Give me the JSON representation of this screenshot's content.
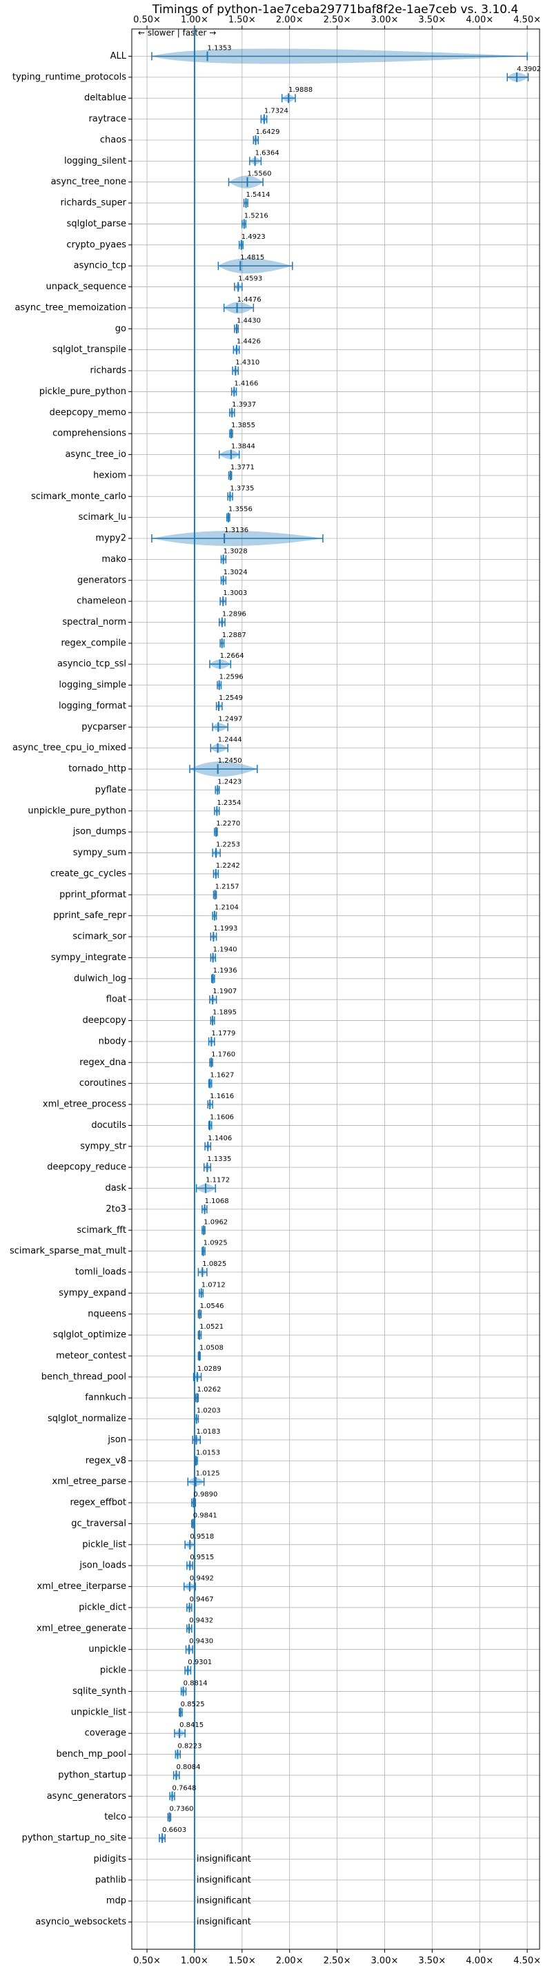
{
  "chart_data": {
    "type": "violin",
    "title": "Timings of python-1ae7ceba29771baf8f2e-1ae7ceb vs. 3.10.4",
    "annotation": "← slower | faster →",
    "color": "#1f77b4",
    "grid": true,
    "reference_line": 1,
    "xlim": [
      0.34,
      4.63
    ],
    "xticks": [
      {
        "value": 0.5,
        "label": "0.50×"
      },
      {
        "value": 1,
        "label": "1.00×"
      },
      {
        "value": 1.5,
        "label": "1.50×"
      },
      {
        "value": 2,
        "label": "2.00×"
      },
      {
        "value": 2.5,
        "label": "2.50×"
      },
      {
        "value": 3,
        "label": "3.00×"
      },
      {
        "value": 3.5,
        "label": "3.50×"
      },
      {
        "value": 4,
        "label": "4.00×"
      },
      {
        "value": 4.5,
        "label": "4.50×"
      }
    ],
    "categories": [
      "ALL",
      "typing_runtime_protocols",
      "deltablue",
      "raytrace",
      "chaos",
      "logging_silent",
      "async_tree_none",
      "richards_super",
      "sqlglot_parse",
      "crypto_pyaes",
      "asyncio_tcp",
      "unpack_sequence",
      "async_tree_memoization",
      "go",
      "sqlglot_transpile",
      "richards",
      "pickle_pure_python",
      "deepcopy_memo",
      "comprehensions",
      "async_tree_io",
      "hexiom",
      "scimark_monte_carlo",
      "scimark_lu",
      "mypy2",
      "mako",
      "generators",
      "chameleon",
      "spectral_norm",
      "regex_compile",
      "asyncio_tcp_ssl",
      "logging_simple",
      "logging_format",
      "pycparser",
      "async_tree_cpu_io_mixed",
      "tornado_http",
      "pyflate",
      "unpickle_pure_python",
      "json_dumps",
      "sympy_sum",
      "create_gc_cycles",
      "pprint_pformat",
      "pprint_safe_repr",
      "scimark_sor",
      "sympy_integrate",
      "dulwich_log",
      "float",
      "deepcopy",
      "nbody",
      "regex_dna",
      "coroutines",
      "xml_etree_process",
      "docutils",
      "sympy_str",
      "deepcopy_reduce",
      "dask",
      "2to3",
      "scimark_fft",
      "scimark_sparse_mat_mult",
      "tomli_loads",
      "sympy_expand",
      "nqueens",
      "sqlglot_optimize",
      "meteor_contest",
      "bench_thread_pool",
      "fannkuch",
      "sqlglot_normalize",
      "json",
      "regex_v8",
      "xml_etree_parse",
      "regex_effbot",
      "gc_traversal",
      "pickle_list",
      "json_loads",
      "xml_etree_iterparse",
      "pickle_dict",
      "xml_etree_generate",
      "unpickle",
      "pickle",
      "sqlite_synth",
      "unpickle_list",
      "coverage",
      "bench_mp_pool",
      "python_startup",
      "async_generators",
      "telco",
      "python_startup_no_site",
      "pidigits",
      "pathlib",
      "mdp",
      "asyncio_websockets"
    ],
    "values": [
      1.1353,
      4.3902,
      1.9888,
      1.7324,
      1.6429,
      1.6364,
      1.556,
      1.5414,
      1.5216,
      1.4923,
      1.4815,
      1.4593,
      1.4476,
      1.443,
      1.4426,
      1.431,
      1.4166,
      1.3937,
      1.3855,
      1.3844,
      1.3771,
      1.3735,
      1.3556,
      1.3136,
      1.3028,
      1.3024,
      1.3003,
      1.2896,
      1.2887,
      1.2664,
      1.2596,
      1.2549,
      1.2497,
      1.2444,
      1.245,
      1.2423,
      1.2354,
      1.227,
      1.2253,
      1.2242,
      1.2157,
      1.2104,
      1.1993,
      1.194,
      1.1936,
      1.1907,
      1.1895,
      1.1779,
      1.176,
      1.1627,
      1.1616,
      1.1606,
      1.1406,
      1.1335,
      1.1172,
      1.1068,
      1.0962,
      1.0925,
      1.0825,
      1.0712,
      1.0546,
      1.0521,
      1.0508,
      1.0289,
      1.0262,
      1.0203,
      1.0183,
      1.0153,
      1.0125,
      0.989,
      0.9841,
      0.9518,
      0.9515,
      0.9492,
      0.9467,
      0.9432,
      0.943,
      0.9301,
      0.8814,
      0.8525,
      0.8415,
      0.8223,
      0.8084,
      0.7648,
      0.736,
      0.6603,
      null,
      null,
      null,
      null
    ],
    "value_labels": [
      "1.1353",
      "4.3902",
      "1.9888",
      "1.7324",
      "1.6429",
      "1.6364",
      "1.5560",
      "1.5414",
      "1.5216",
      "1.4923",
      "1.4815",
      "1.4593",
      "1.4476",
      "1.4430",
      "1.4426",
      "1.4310",
      "1.4166",
      "1.3937",
      "1.3855",
      "1.3844",
      "1.3771",
      "1.3735",
      "1.3556",
      "1.3136",
      "1.3028",
      "1.3024",
      "1.3003",
      "1.2896",
      "1.2887",
      "1.2664",
      "1.2596",
      "1.2549",
      "1.2497",
      "1.2444",
      "1.2450",
      "1.2423",
      "1.2354",
      "1.2270",
      "1.2253",
      "1.2242",
      "1.2157",
      "1.2104",
      "1.1993",
      "1.1940",
      "1.1936",
      "1.1907",
      "1.1895",
      "1.1779",
      "1.1760",
      "1.1627",
      "1.1616",
      "1.1606",
      "1.1406",
      "1.1335",
      "1.1172",
      "1.1068",
      "1.0962",
      "1.0925",
      "1.0825",
      "1.0712",
      "1.0546",
      "1.0521",
      "1.0508",
      "1.0289",
      "1.0262",
      "1.0203",
      "1.0183",
      "1.0153",
      "1.0125",
      "0.9890",
      "0.9841",
      "0.9518",
      "0.9515",
      "0.9492",
      "0.9467",
      "0.9432",
      "0.9430",
      "0.9301",
      "0.8814",
      "0.8525",
      "0.8415",
      "0.8223",
      "0.8084",
      "0.7648",
      "0.7360",
      "0.6603",
      "insignificant",
      "insignificant",
      "insignificant",
      "insignificant"
    ],
    "whisker_low": [
      0.55,
      4.29,
      1.92,
      1.7,
      1.62,
      1.58,
      1.36,
      1.52,
      1.5,
      1.47,
      1.25,
      1.42,
      1.31,
      1.42,
      1.41,
      1.4,
      1.39,
      1.37,
      1.37,
      1.26,
      1.36,
      1.35,
      1.34,
      0.55,
      1.28,
      1.28,
      1.27,
      1.26,
      1.27,
      1.16,
      1.24,
      1.23,
      1.19,
      1.17,
      0.95,
      1.22,
      1.21,
      1.21,
      1.19,
      1.2,
      1.2,
      1.19,
      1.17,
      1.17,
      1.18,
      1.16,
      1.17,
      1.15,
      1.16,
      1.15,
      1.14,
      1.15,
      1.11,
      1.1,
      1.02,
      1.08,
      1.08,
      1.08,
      1.04,
      1.05,
      1.04,
      1.04,
      1.04,
      0.99,
      1.01,
      1.0,
      0.98,
      1.0,
      0.93,
      0.97,
      0.97,
      0.9,
      0.92,
      0.89,
      0.92,
      0.92,
      0.91,
      0.9,
      0.86,
      0.84,
      0.79,
      0.8,
      0.78,
      0.74,
      0.72,
      0.63,
      null,
      null,
      null,
      null
    ],
    "whisker_high": [
      4.5,
      4.51,
      2.06,
      1.76,
      1.67,
      1.7,
      1.72,
      1.56,
      1.54,
      1.51,
      2.03,
      1.5,
      1.62,
      1.46,
      1.47,
      1.46,
      1.44,
      1.42,
      1.4,
      1.47,
      1.39,
      1.4,
      1.37,
      2.35,
      1.33,
      1.33,
      1.33,
      1.32,
      1.31,
      1.38,
      1.28,
      1.29,
      1.35,
      1.35,
      1.66,
      1.26,
      1.26,
      1.24,
      1.27,
      1.25,
      1.23,
      1.23,
      1.23,
      1.22,
      1.21,
      1.23,
      1.21,
      1.21,
      1.19,
      1.18,
      1.19,
      1.18,
      1.17,
      1.17,
      1.22,
      1.13,
      1.11,
      1.11,
      1.13,
      1.09,
      1.07,
      1.07,
      1.06,
      1.07,
      1.04,
      1.04,
      1.06,
      1.03,
      1.1,
      1.01,
      1.0,
      1.0,
      0.98,
      1.01,
      0.97,
      0.97,
      0.98,
      0.96,
      0.91,
      0.87,
      0.9,
      0.85,
      0.84,
      0.79,
      0.75,
      0.69,
      null,
      null,
      null,
      null
    ]
  }
}
